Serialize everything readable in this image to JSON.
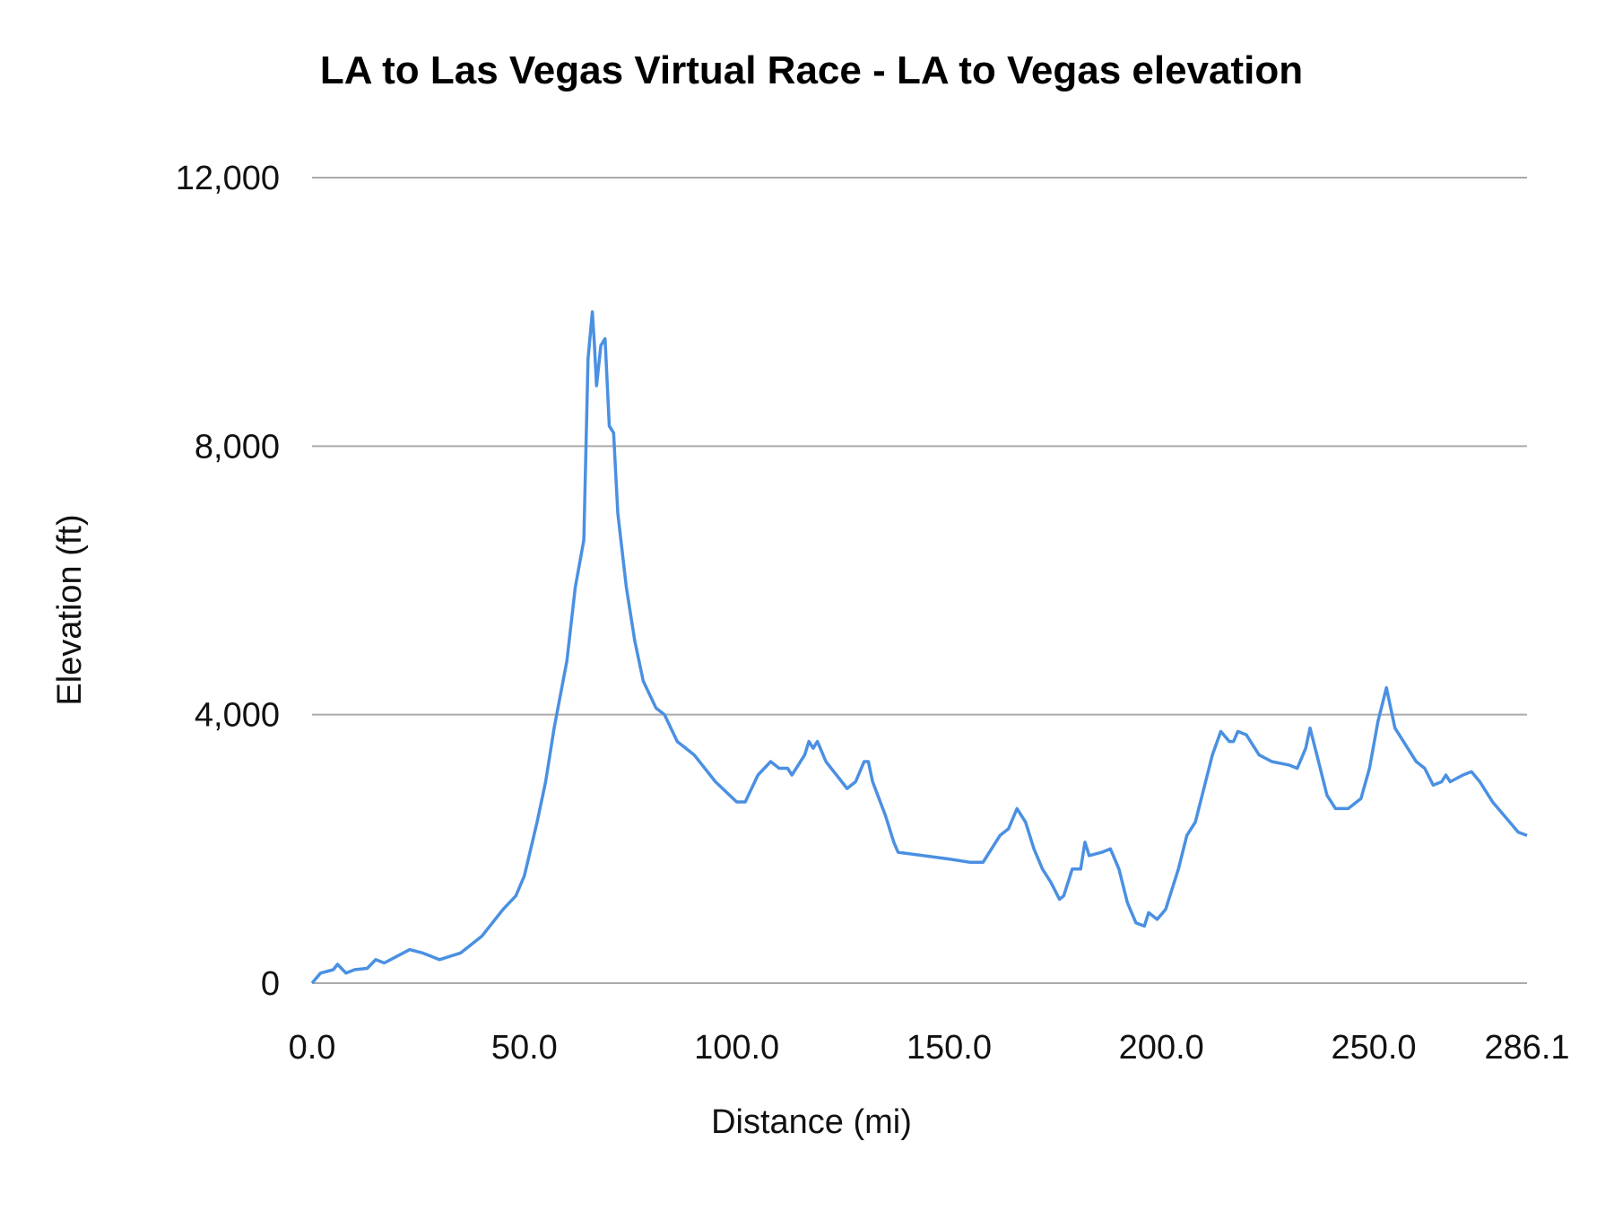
{
  "chart_data": {
    "type": "line",
    "title": "LA to Las Vegas Virtual Race - LA to Vegas elevation",
    "xlabel": "Distance (mi)",
    "ylabel": "Elevation (ft)",
    "xlim": [
      0,
      286.1
    ],
    "ylim": [
      0,
      12000
    ],
    "x_ticks": [
      "0.0",
      "50.0",
      "100.0",
      "150.0",
      "200.0",
      "250.0",
      "286.1"
    ],
    "x_tick_values": [
      0,
      50,
      100,
      150,
      200,
      250,
      286.1
    ],
    "y_ticks": [
      "0",
      "4,000",
      "8,000",
      "12,000"
    ],
    "y_tick_values": [
      0,
      4000,
      8000,
      12000
    ],
    "grid": "horizontal",
    "line_color": "#4a90e2",
    "series": [
      {
        "x": [
          0,
          2,
          5,
          6,
          8,
          10,
          13,
          15,
          17,
          20,
          23,
          26,
          30,
          35,
          40,
          45,
          48,
          50,
          53,
          55,
          57,
          60,
          62,
          64,
          65,
          66,
          66.5,
          67,
          68,
          69,
          70,
          71,
          72,
          74,
          76,
          78,
          81,
          83,
          86,
          90,
          95,
          100,
          102,
          105,
          108,
          110,
          112,
          113,
          116,
          117,
          118,
          119,
          121,
          126,
          128,
          130,
          131,
          132,
          135,
          137,
          138,
          150,
          155,
          158,
          162,
          164,
          166,
          168,
          170,
          172,
          174,
          176,
          177,
          179,
          181,
          182,
          183,
          186,
          188,
          190,
          192,
          194,
          196,
          197,
          199,
          201,
          204,
          206,
          208,
          210,
          212,
          214,
          216,
          217,
          218,
          220,
          223,
          226,
          230,
          232,
          234,
          235,
          237,
          239,
          241,
          244,
          247,
          249,
          251,
          253,
          255,
          258,
          260,
          262,
          264,
          266,
          267,
          268,
          271,
          273,
          275,
          278,
          282,
          284,
          286.1
        ],
        "y": [
          0,
          150,
          200,
          280,
          150,
          200,
          220,
          350,
          300,
          400,
          500,
          450,
          350,
          450,
          700,
          1100,
          1300,
          1600,
          2400,
          3000,
          3800,
          4800,
          5900,
          6600,
          9300,
          10000,
          9500,
          8900,
          9500,
          9600,
          8300,
          8200,
          7000,
          5900,
          5100,
          4500,
          4100,
          4000,
          3600,
          3400,
          3000,
          2700,
          2700,
          3100,
          3300,
          3200,
          3200,
          3100,
          3400,
          3600,
          3500,
          3600,
          3300,
          2900,
          3000,
          3300,
          3300,
          3000,
          2500,
          2100,
          1950,
          1850,
          1800,
          1800,
          2200,
          2300,
          2600,
          2400,
          2000,
          1700,
          1500,
          1250,
          1300,
          1700,
          1700,
          2100,
          1900,
          1950,
          2000,
          1700,
          1200,
          900,
          850,
          1050,
          950,
          1100,
          1700,
          2200,
          2400,
          2900,
          3400,
          3750,
          3600,
          3600,
          3750,
          3700,
          3400,
          3300,
          3250,
          3200,
          3500,
          3800,
          3300,
          2800,
          2600,
          2600,
          2750,
          3200,
          3900,
          4400,
          3800,
          3500,
          3300,
          3200,
          2950,
          3000,
          3100,
          3000,
          3100,
          3150,
          3000,
          2700,
          2400,
          2250,
          2200
        ]
      }
    ]
  }
}
